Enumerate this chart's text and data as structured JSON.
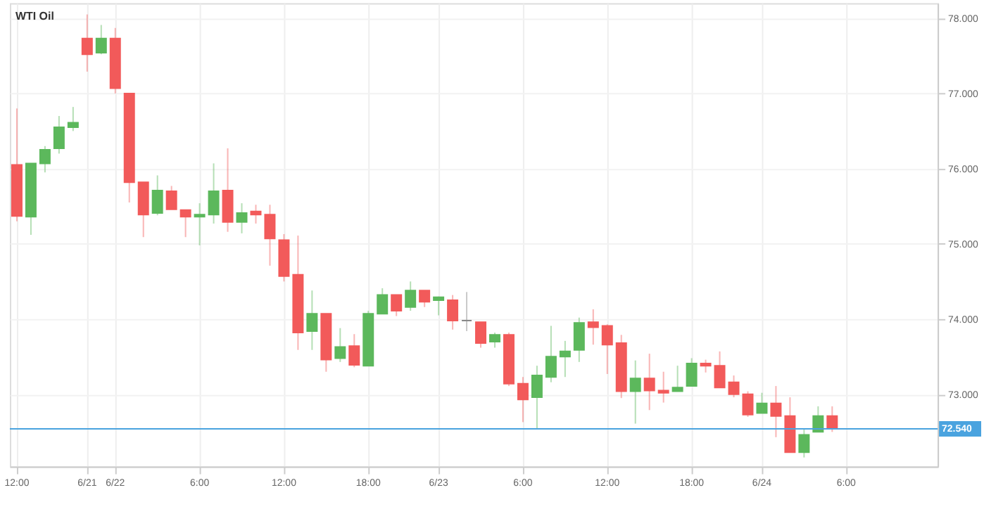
{
  "chart_data": {
    "type": "candlestick",
    "title": "WTI Oil",
    "categories": [
      "12:00",
      null,
      null,
      null,
      null,
      "6/21",
      null,
      "6/22",
      null,
      null,
      null,
      null,
      null,
      "6:00",
      null,
      null,
      null,
      null,
      null,
      "12:00",
      null,
      null,
      null,
      null,
      null,
      "18:00",
      null,
      null,
      null,
      null,
      "6/23",
      null,
      null,
      null,
      null,
      null,
      "6:00",
      null,
      null,
      null,
      null,
      null,
      "12:00",
      null,
      null,
      null,
      null,
      null,
      "18:00",
      null,
      null,
      null,
      null,
      "6/24",
      null,
      null,
      null,
      null,
      null,
      "6:00",
      null,
      null,
      null,
      null,
      null,
      null
    ],
    "ohlc": [
      [
        76.05,
        76.8,
        75.3,
        75.37
      ],
      [
        75.36,
        76.07,
        75.12,
        76.07
      ],
      [
        76.07,
        76.3,
        75.95,
        76.25
      ],
      [
        76.27,
        76.7,
        76.2,
        76.55
      ],
      [
        76.55,
        76.82,
        76.5,
        76.61
      ],
      [
        77.73,
        78.05,
        77.29,
        77.52
      ],
      [
        77.54,
        77.91,
        77.52,
        77.73
      ],
      [
        77.73,
        77.87,
        77.0,
        77.07
      ],
      [
        77.0,
        77.0,
        75.55,
        75.82
      ],
      [
        75.82,
        75.82,
        75.09,
        75.39
      ],
      [
        75.41,
        75.91,
        75.38,
        75.71
      ],
      [
        75.7,
        75.77,
        75.46,
        75.46
      ],
      [
        75.45,
        75.45,
        75.09,
        75.36
      ],
      [
        75.36,
        75.54,
        74.98,
        75.39
      ],
      [
        75.39,
        76.07,
        75.27,
        75.7
      ],
      [
        75.71,
        76.27,
        75.16,
        75.29
      ],
      [
        75.29,
        75.54,
        75.14,
        75.41
      ],
      [
        75.43,
        75.52,
        75.27,
        75.39
      ],
      [
        75.39,
        75.52,
        74.71,
        75.07
      ],
      [
        75.05,
        75.13,
        74.5,
        74.57
      ],
      [
        74.59,
        75.11,
        73.59,
        73.82
      ],
      [
        73.84,
        74.38,
        73.59,
        74.07
      ],
      [
        74.07,
        74.07,
        73.3,
        73.46
      ],
      [
        73.48,
        73.88,
        73.43,
        73.63
      ],
      [
        73.64,
        73.8,
        73.36,
        73.39
      ],
      [
        73.38,
        74.11,
        73.38,
        74.07
      ],
      [
        74.07,
        74.41,
        74.07,
        74.32
      ],
      [
        74.32,
        74.32,
        74.04,
        74.11
      ],
      [
        74.16,
        74.5,
        74.11,
        74.38
      ],
      [
        74.38,
        74.38,
        74.16,
        74.23
      ],
      [
        74.25,
        74.3,
        74.05,
        74.29
      ],
      [
        74.25,
        74.32,
        73.86,
        73.98
      ],
      [
        73.98,
        74.36,
        73.84,
        73.98
      ],
      [
        73.96,
        73.96,
        73.62,
        73.68
      ],
      [
        73.7,
        73.82,
        73.62,
        73.79
      ],
      [
        73.79,
        73.82,
        73.11,
        73.14
      ],
      [
        73.14,
        73.23,
        72.63,
        72.93
      ],
      [
        72.96,
        73.38,
        72.55,
        73.25
      ],
      [
        73.23,
        73.91,
        73.16,
        73.5
      ],
      [
        73.5,
        73.71,
        73.23,
        73.57
      ],
      [
        73.59,
        74.02,
        73.43,
        73.95
      ],
      [
        73.96,
        74.13,
        73.66,
        73.89
      ],
      [
        73.91,
        73.93,
        73.27,
        73.66
      ],
      [
        73.68,
        73.79,
        72.95,
        73.04
      ],
      [
        73.04,
        73.45,
        72.61,
        73.21
      ],
      [
        73.21,
        73.54,
        72.79,
        73.05
      ],
      [
        73.05,
        73.3,
        72.89,
        73.02
      ],
      [
        73.04,
        73.38,
        73.04,
        73.09
      ],
      [
        73.11,
        73.48,
        73.11,
        73.41
      ],
      [
        73.41,
        73.46,
        73.29,
        73.38
      ],
      [
        73.38,
        73.57,
        73.09,
        73.09
      ],
      [
        73.16,
        73.25,
        72.96,
        73.0
      ],
      [
        73.0,
        73.04,
        72.7,
        72.73
      ],
      [
        72.75,
        73.02,
        72.75,
        72.88
      ],
      [
        72.88,
        73.11,
        72.43,
        72.71
      ],
      [
        72.71,
        72.96,
        72.23,
        72.23
      ],
      [
        72.23,
        72.54,
        72.16,
        72.46
      ],
      [
        72.5,
        72.84,
        72.5,
        72.71
      ],
      [
        72.71,
        72.84,
        72.5,
        72.54
      ],
      null,
      null,
      null,
      null,
      null,
      null,
      null
    ],
    "colors": [
      "#f25a5a",
      "#5cb85c",
      "#5cb85c",
      "#5cb85c",
      "#5cb85c",
      "#f25a5a",
      "#5cb85c",
      "#f25a5a",
      "#f25a5a",
      "#f25a5a",
      "#5cb85c",
      "#f25a5a",
      "#f25a5a",
      "#5cb85c",
      "#5cb85c",
      "#f25a5a",
      "#5cb85c",
      "#f25a5a",
      "#f25a5a",
      "#f25a5a",
      "#f25a5a",
      "#5cb85c",
      "#f25a5a",
      "#5cb85c",
      "#f25a5a",
      "#5cb85c",
      "#5cb85c",
      "#f25a5a",
      "#5cb85c",
      "#f25a5a",
      "#5cb85c",
      "#f25a5a",
      "#888888",
      "#f25a5a",
      "#5cb85c",
      "#f25a5a",
      "#f25a5a",
      "#5cb85c",
      "#5cb85c",
      "#5cb85c",
      "#5cb85c",
      "#f25a5a",
      "#f25a5a",
      "#f25a5a",
      "#5cb85c",
      "#f25a5a",
      "#f25a5a",
      "#5cb85c",
      "#5cb85c",
      "#f25a5a",
      "#f25a5a",
      "#f25a5a",
      "#f25a5a",
      "#5cb85c",
      "#f25a5a",
      "#f25a5a",
      "#5cb85c",
      "#5cb85c",
      "#f25a5a",
      null,
      null,
      null,
      null,
      null,
      null,
      null
    ],
    "ylim": [
      72.04,
      78.2
    ],
    "yticks": [
      {
        "value": 73,
        "label": "73.000"
      },
      {
        "value": 74,
        "label": "74.000"
      },
      {
        "value": 75,
        "label": "75.000"
      },
      {
        "value": 76,
        "label": "76.000"
      },
      {
        "value": 77,
        "label": "77.000"
      },
      {
        "value": 78,
        "label": "78.000"
      }
    ],
    "ref_lines": [
      {
        "axis": "y",
        "value": 72.54,
        "label": "72.540",
        "color": "#4aa3df"
      }
    ],
    "grid": true
  }
}
